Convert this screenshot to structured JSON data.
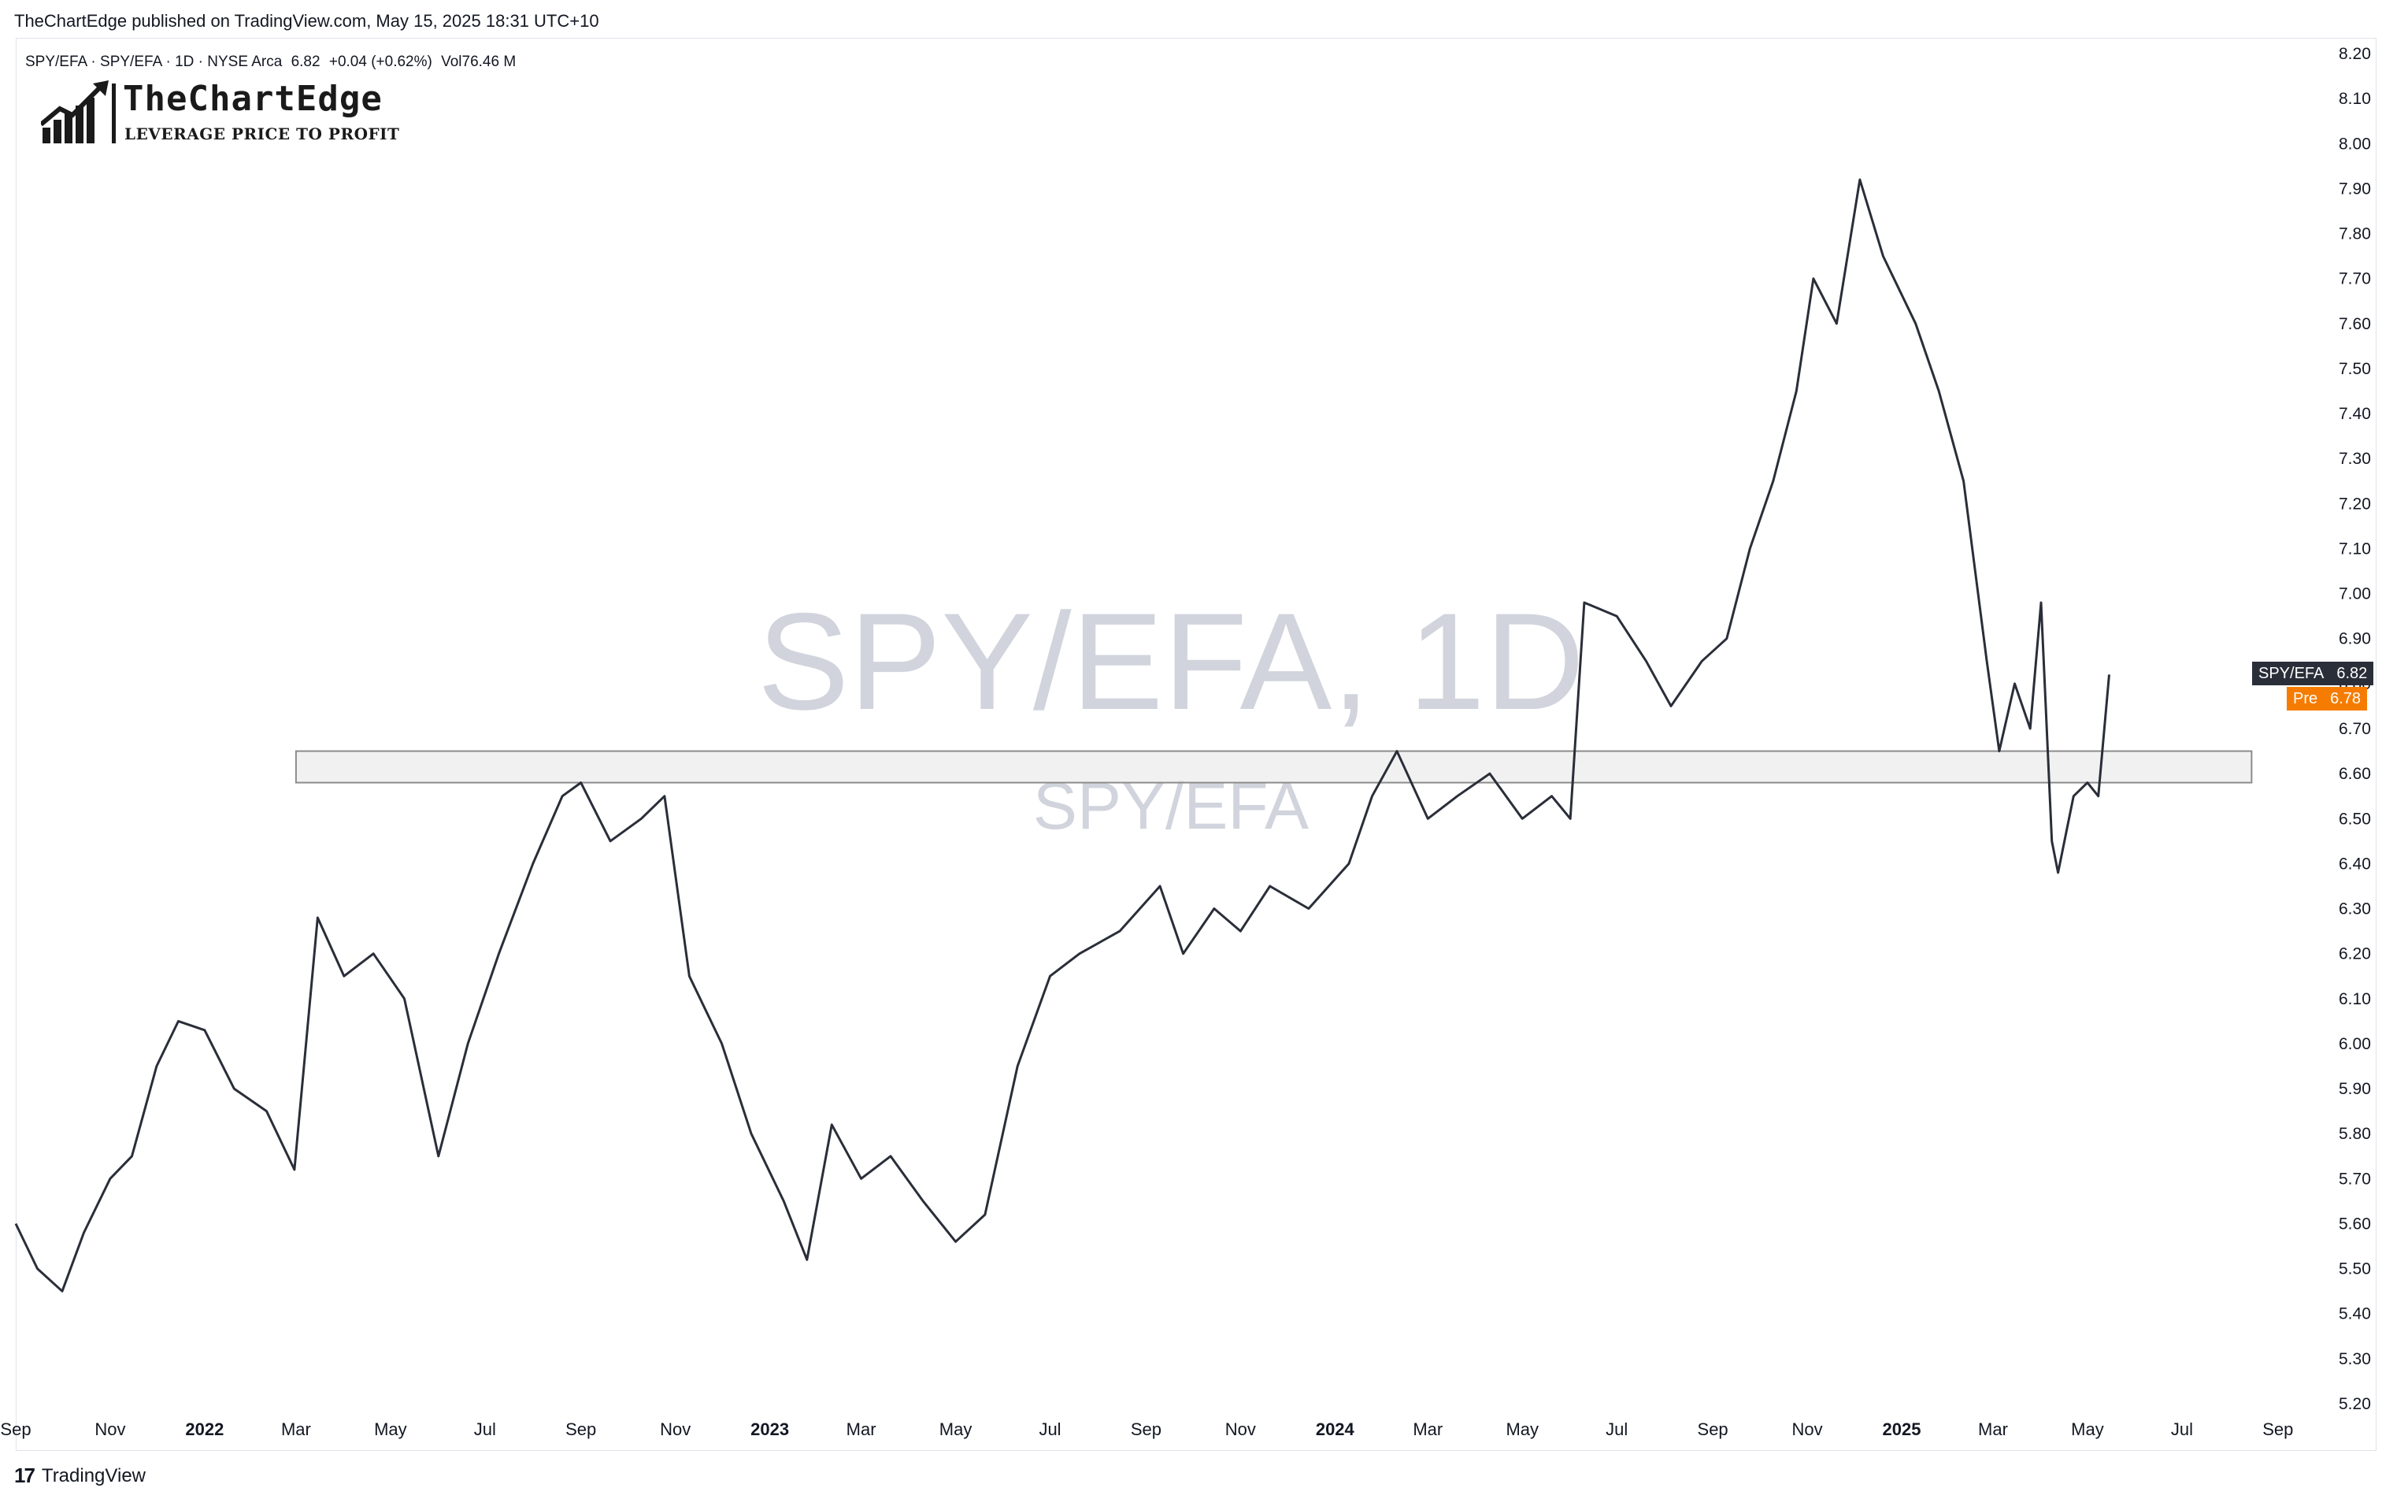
{
  "publisher": "TheChartEdge published on TradingView.com, May 15, 2025 18:31 UTC+10",
  "legend": {
    "symbol": "SPY/EFA · SPY/EFA · 1D · NYSE Arca",
    "last": "6.82",
    "change": "+0.04 (+0.62%)",
    "volume": "Vol76.46 M"
  },
  "logo": {
    "name": "TheChartEdge",
    "tagline": "LEVERAGE PRICE TO PROFIT"
  },
  "watermark": {
    "main": "SPY/EFA, 1D",
    "sub": "SPY/EFA"
  },
  "badges": {
    "last": {
      "label": "SPY/EFA",
      "value": "6.82",
      "color": "#2a2e39"
    },
    "pre": {
      "label": "Pre",
      "value": "6.78",
      "color": "#f57c00"
    }
  },
  "footer": {
    "brand": "TradingView"
  },
  "colors": {
    "line": "#2a2e39",
    "zone_fill": "#ebebeb",
    "zone_border": "#8c8c8c",
    "watermark": "#d1d4dc"
  },
  "chart_data": {
    "type": "line",
    "series": [
      {
        "values": [
          {
            "date": "2021-09-01",
            "y": 5.6
          },
          {
            "date": "2021-09-15",
            "y": 5.5
          },
          {
            "date": "2021-10-01",
            "y": 5.45
          },
          {
            "date": "2021-10-15",
            "y": 5.58
          },
          {
            "date": "2021-11-01",
            "y": 5.7
          },
          {
            "date": "2021-11-15",
            "y": 5.75
          },
          {
            "date": "2021-12-01",
            "y": 5.95
          },
          {
            "date": "2021-12-15",
            "y": 6.05
          },
          {
            "date": "2022-01-01",
            "y": 6.03
          },
          {
            "date": "2022-01-20",
            "y": 5.9
          },
          {
            "date": "2022-02-10",
            "y": 5.85
          },
          {
            "date": "2022-02-28",
            "y": 5.72
          },
          {
            "date": "2022-03-15",
            "y": 6.28
          },
          {
            "date": "2022-04-01",
            "y": 6.15
          },
          {
            "date": "2022-04-20",
            "y": 6.2
          },
          {
            "date": "2022-05-10",
            "y": 6.1
          },
          {
            "date": "2022-06-01",
            "y": 5.75
          },
          {
            "date": "2022-06-20",
            "y": 6.0
          },
          {
            "date": "2022-07-10",
            "y": 6.2
          },
          {
            "date": "2022-08-01",
            "y": 6.4
          },
          {
            "date": "2022-08-20",
            "y": 6.55
          },
          {
            "date": "2022-09-01",
            "y": 6.58
          },
          {
            "date": "2022-09-20",
            "y": 6.45
          },
          {
            "date": "2022-10-10",
            "y": 6.5
          },
          {
            "date": "2022-10-25",
            "y": 6.55
          },
          {
            "date": "2022-11-10",
            "y": 6.15
          },
          {
            "date": "2022-12-01",
            "y": 6.0
          },
          {
            "date": "2022-12-20",
            "y": 5.8
          },
          {
            "date": "2023-01-10",
            "y": 5.65
          },
          {
            "date": "2023-01-25",
            "y": 5.52
          },
          {
            "date": "2023-02-10",
            "y": 5.82
          },
          {
            "date": "2023-03-01",
            "y": 5.7
          },
          {
            "date": "2023-03-20",
            "y": 5.75
          },
          {
            "date": "2023-04-10",
            "y": 5.65
          },
          {
            "date": "2023-05-01",
            "y": 5.56
          },
          {
            "date": "2023-05-20",
            "y": 5.62
          },
          {
            "date": "2023-06-10",
            "y": 5.95
          },
          {
            "date": "2023-07-01",
            "y": 6.15
          },
          {
            "date": "2023-07-20",
            "y": 6.2
          },
          {
            "date": "2023-08-15",
            "y": 6.25
          },
          {
            "date": "2023-09-10",
            "y": 6.35
          },
          {
            "date": "2023-09-25",
            "y": 6.2
          },
          {
            "date": "2023-10-15",
            "y": 6.3
          },
          {
            "date": "2023-11-01",
            "y": 6.25
          },
          {
            "date": "2023-11-20",
            "y": 6.35
          },
          {
            "date": "2023-12-15",
            "y": 6.3
          },
          {
            "date": "2024-01-10",
            "y": 6.4
          },
          {
            "date": "2024-01-25",
            "y": 6.55
          },
          {
            "date": "2024-02-10",
            "y": 6.65
          },
          {
            "date": "2024-03-01",
            "y": 6.5
          },
          {
            "date": "2024-03-20",
            "y": 6.55
          },
          {
            "date": "2024-04-10",
            "y": 6.6
          },
          {
            "date": "2024-05-01",
            "y": 6.5
          },
          {
            "date": "2024-05-20",
            "y": 6.55
          },
          {
            "date": "2024-06-01",
            "y": 6.5
          },
          {
            "date": "2024-06-10",
            "y": 6.98
          },
          {
            "date": "2024-07-01",
            "y": 6.95
          },
          {
            "date": "2024-07-20",
            "y": 6.85
          },
          {
            "date": "2024-08-05",
            "y": 6.75
          },
          {
            "date": "2024-08-25",
            "y": 6.85
          },
          {
            "date": "2024-09-10",
            "y": 6.9
          },
          {
            "date": "2024-09-25",
            "y": 7.1
          },
          {
            "date": "2024-10-10",
            "y": 7.25
          },
          {
            "date": "2024-10-25",
            "y": 7.45
          },
          {
            "date": "2024-11-05",
            "y": 7.7
          },
          {
            "date": "2024-11-20",
            "y": 7.6
          },
          {
            "date": "2024-12-05",
            "y": 7.92
          },
          {
            "date": "2024-12-20",
            "y": 7.75
          },
          {
            "date": "2025-01-10",
            "y": 7.6
          },
          {
            "date": "2025-01-25",
            "y": 7.45
          },
          {
            "date": "2025-02-10",
            "y": 7.25
          },
          {
            "date": "2025-02-25",
            "y": 6.85
          },
          {
            "date": "2025-03-05",
            "y": 6.65
          },
          {
            "date": "2025-03-15",
            "y": 6.8
          },
          {
            "date": "2025-03-25",
            "y": 6.7
          },
          {
            "date": "2025-04-01",
            "y": 6.98
          },
          {
            "date": "2025-04-08",
            "y": 6.45
          },
          {
            "date": "2025-04-12",
            "y": 6.38
          },
          {
            "date": "2025-04-22",
            "y": 6.55
          },
          {
            "date": "2025-05-01",
            "y": 6.58
          },
          {
            "date": "2025-05-08",
            "y": 6.55
          },
          {
            "date": "2025-05-15",
            "y": 6.82
          }
        ]
      }
    ],
    "zone": {
      "y_low": 6.58,
      "y_high": 6.65,
      "x_start": "2022-03-01",
      "x_end": "2025-08-15"
    },
    "xlim": [
      "2021-09-01",
      "2025-09-25"
    ],
    "ylim": [
      5.2,
      8.2
    ],
    "y_ticks": [
      "5.20",
      "5.30",
      "5.40",
      "5.50",
      "5.60",
      "5.70",
      "5.80",
      "5.90",
      "6.00",
      "6.10",
      "6.20",
      "6.30",
      "6.40",
      "6.50",
      "6.60",
      "6.70",
      "6.80",
      "6.90",
      "7.00",
      "7.10",
      "7.20",
      "7.30",
      "7.40",
      "7.50",
      "7.60",
      "7.70",
      "7.80",
      "7.90",
      "8.00",
      "8.10",
      "8.20"
    ],
    "x_ticks": [
      {
        "date": "2021-09-01",
        "label": "Sep"
      },
      {
        "date": "2021-11-01",
        "label": "Nov"
      },
      {
        "date": "2022-01-01",
        "label": "2022"
      },
      {
        "date": "2022-03-01",
        "label": "Mar"
      },
      {
        "date": "2022-05-01",
        "label": "May"
      },
      {
        "date": "2022-07-01",
        "label": "Jul"
      },
      {
        "date": "2022-09-01",
        "label": "Sep"
      },
      {
        "date": "2022-11-01",
        "label": "Nov"
      },
      {
        "date": "2023-01-01",
        "label": "2023"
      },
      {
        "date": "2023-03-01",
        "label": "Mar"
      },
      {
        "date": "2023-05-01",
        "label": "May"
      },
      {
        "date": "2023-07-01",
        "label": "Jul"
      },
      {
        "date": "2023-09-01",
        "label": "Sep"
      },
      {
        "date": "2023-11-01",
        "label": "Nov"
      },
      {
        "date": "2024-01-01",
        "label": "2024"
      },
      {
        "date": "2024-03-01",
        "label": "Mar"
      },
      {
        "date": "2024-05-01",
        "label": "May"
      },
      {
        "date": "2024-07-01",
        "label": "Jul"
      },
      {
        "date": "2024-09-01",
        "label": "Sep"
      },
      {
        "date": "2024-11-01",
        "label": "Nov"
      },
      {
        "date": "2025-01-01",
        "label": "2025"
      },
      {
        "date": "2025-03-01",
        "label": "Mar"
      },
      {
        "date": "2025-05-01",
        "label": "May"
      },
      {
        "date": "2025-07-01",
        "label": "Jul"
      },
      {
        "date": "2025-09-01",
        "label": "Sep"
      }
    ],
    "grid": false,
    "legend": "top-left"
  }
}
